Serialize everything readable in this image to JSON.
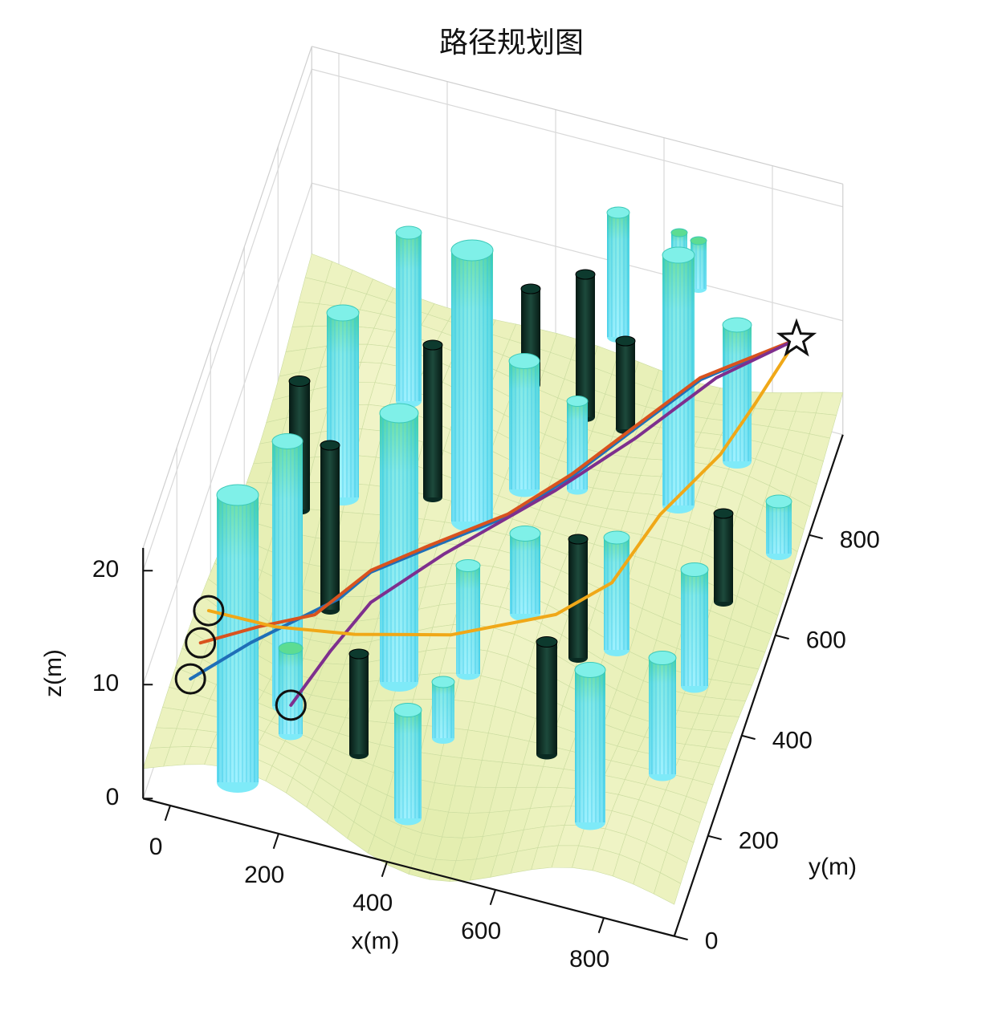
{
  "chart_data": {
    "type": "line3d",
    "title": "路径规划图",
    "x_label": "x(m)",
    "y_label": "y(m)",
    "z_label": "z(m)",
    "xlim": [
      -50,
      930
    ],
    "ylim": [
      0,
      1000
    ],
    "zlim": [
      0,
      22
    ],
    "xticks": [
      0,
      200,
      400,
      600,
      800
    ],
    "yticks": [
      0,
      200,
      400,
      600,
      800
    ],
    "zticks": [
      0,
      10,
      20
    ],
    "grid": true,
    "series": [
      {
        "color": "#1f6fb8",
        "x": [
          27,
          128,
          196,
          253,
          292,
          375,
          493,
          579,
          660,
          742,
          875
        ],
        "y": [
          33,
          65,
          132,
          188,
          252,
          322,
          420,
          524,
          643,
          762,
          902
        ],
        "z": [
          10,
          13,
          13,
          13,
          13,
          13,
          13,
          13,
          13,
          13,
          12
        ]
      },
      {
        "color": "#d9531e",
        "x": [
          30,
          132,
          221,
          291,
          373,
          491,
          577,
          658,
          740,
          875
        ],
        "y": [
          83,
          98,
          147,
          255,
          326,
          423,
          527,
          646,
          765,
          902
        ],
        "z": [
          11,
          13,
          13,
          13,
          13,
          13,
          13,
          13,
          13,
          12
        ]
      },
      {
        "color": "#7e2f8e",
        "x": [
          180,
          236,
          296,
          405,
          559,
          665,
          767,
          875
        ],
        "y": [
          137,
          193,
          238,
          319,
          490,
          624,
          772,
          902
        ],
        "z": [
          5,
          8,
          11,
          13,
          13,
          13,
          13,
          12
        ]
      },
      {
        "color": "#f0a818",
        "x": [
          32,
          160,
          300,
          464,
          630,
          707,
          750,
          818,
          849,
          875
        ],
        "y": [
          125,
          106,
          130,
          175,
          262,
          347,
          495,
          634,
          747,
          902
        ],
        "z": [
          12,
          13,
          13,
          13,
          13,
          13,
          13,
          13,
          13,
          12
        ]
      }
    ]
  }
}
